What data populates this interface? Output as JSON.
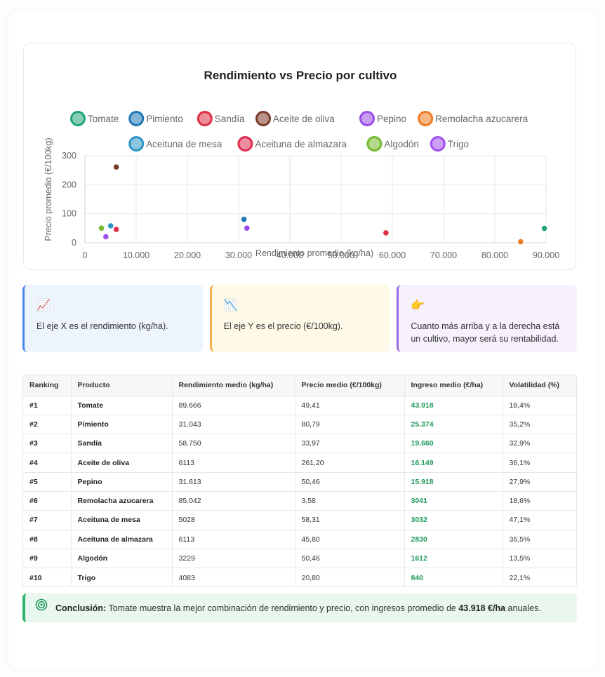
{
  "chart_data": {
    "type": "scatter",
    "title": "Rendimiento vs Precio por cultivo",
    "xlabel": "Rendimiento promedio (kg/ha)",
    "ylabel": "Precio promedio (€/100kg)",
    "xlim": [
      0,
      90000
    ],
    "ylim": [
      0,
      300
    ],
    "xticks": [
      0,
      10000,
      20000,
      30000,
      40000,
      50000,
      60000,
      70000,
      80000,
      90000
    ],
    "xtick_labels": [
      "0",
      "10.000",
      "20.000",
      "30.000",
      "40.000",
      "50.000",
      "60.000",
      "70.000",
      "80.000",
      "90.000"
    ],
    "yticks": [
      0,
      100,
      200,
      300
    ],
    "ytick_labels": [
      "0",
      "100",
      "200",
      "300"
    ],
    "grid": true,
    "legend_position": "top",
    "series": [
      {
        "name": "Tomate",
        "color": "#20a474",
        "x": 89666,
        "y": 49.41
      },
      {
        "name": "Pimiento",
        "color": "#1f77b4",
        "x": 31043,
        "y": 80.79
      },
      {
        "name": "Sandía",
        "color": "#dc2f45",
        "x": 58750,
        "y": 33.97
      },
      {
        "name": "Aceite de oliva",
        "color": "#7b3b2a",
        "x": 6113,
        "y": 261.2
      },
      {
        "name": "Pepino",
        "color": "#9a4ce8",
        "x": 31613,
        "y": 50.46
      },
      {
        "name": "Remolacha azucarera",
        "color": "#f07a22",
        "x": 85042,
        "y": 3.58
      },
      {
        "name": "Aceituna de mesa",
        "color": "#2d95c4",
        "x": 5028,
        "y": 58.31
      },
      {
        "name": "Aceituna de almazara",
        "color": "#de2f50",
        "x": 6113,
        "y": 45.8
      },
      {
        "name": "Algodón",
        "color": "#76b82e",
        "x": 3229,
        "y": 50.46
      },
      {
        "name": "Trigo",
        "color": "#a24ff0",
        "x": 4083,
        "y": 20.8
      }
    ]
  },
  "info": [
    {
      "icon": "📈",
      "icon_name": "chart-increasing-icon",
      "text": "El eje X es el rendimiento (kg/ha)."
    },
    {
      "icon": "📉",
      "icon_name": "chart-decreasing-icon",
      "text": "El eje Y es el precio (€/100kg)."
    },
    {
      "icon": "👉",
      "icon_name": "pointing-right-icon",
      "text": "Cuanto más arriba y a la derecha está un cultivo, mayor será su rentabilidad."
    }
  ],
  "table": {
    "headers": [
      "Ranking",
      "Producto",
      "Rendimiento medio (kg/ha)",
      "Precio medio (€/100kg)",
      "Ingreso medio (€/ha)",
      "Volatilidad (%)"
    ],
    "rows": [
      [
        "#1",
        "Tomate",
        "89.666",
        "49,41",
        "43.918",
        "18,4%"
      ],
      [
        "#2",
        "Pimiento",
        "31.043",
        "80,79",
        "25.374",
        "35,2%"
      ],
      [
        "#3",
        "Sandía",
        "58.750",
        "33,97",
        "19.660",
        "32,9%"
      ],
      [
        "#4",
        "Aceite de oliva",
        "6113",
        "261,20",
        "16.149",
        "36,1%"
      ],
      [
        "#5",
        "Pepino",
        "31.613",
        "50,46",
        "15.918",
        "27,9%"
      ],
      [
        "#6",
        "Remolacha azucarera",
        "85.042",
        "3,58",
        "3041",
        "18,6%"
      ],
      [
        "#7",
        "Aceituna de mesa",
        "5028",
        "58,31",
        "3032",
        "47,1%"
      ],
      [
        "#8",
        "Aceituna de almazara",
        "6113",
        "45,80",
        "2830",
        "36,5%"
      ],
      [
        "#9",
        "Algodón",
        "3229",
        "50,46",
        "1612",
        "13,5%"
      ],
      [
        "#10",
        "Trigo",
        "4083",
        "20,80",
        "840",
        "22,1%"
      ]
    ]
  },
  "conclusion": {
    "icon_name": "target-icon",
    "label": "Conclusión:",
    "text": "Tomate muestra la mejor combinación de rendimiento y precio, con ingresos promedio de",
    "value": "43.918 €/ha",
    "suffix": "anuales."
  },
  "colors": {
    "accent_green": "#1e9a5b",
    "blue": "#4a86e8",
    "yellow": "#f4b04a",
    "purple": "#9c6ade"
  }
}
